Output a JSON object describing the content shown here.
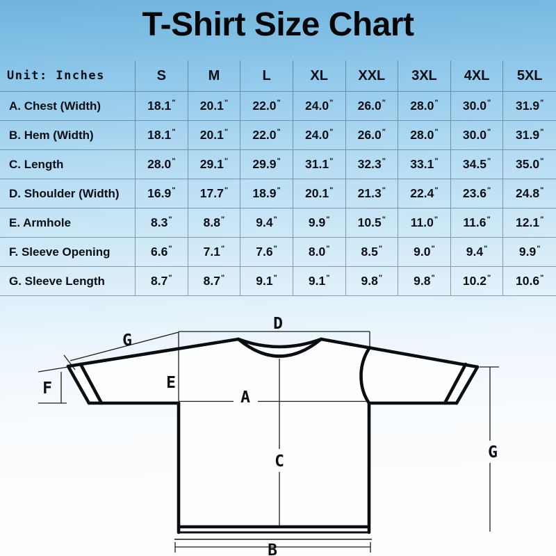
{
  "title": "T-Shirt Size Chart",
  "table": {
    "unit_label": "Unit: Inches",
    "inch_mark": "\"",
    "size_headers": [
      "S",
      "M",
      "L",
      "XL",
      "XXL",
      "3XL",
      "4XL",
      "5XL"
    ],
    "rows": [
      {
        "label": "A. Chest (Width)",
        "values": [
          "18.1",
          "20.1",
          "22.0",
          "24.0",
          "26.0",
          "28.0",
          "30.0",
          "31.9"
        ]
      },
      {
        "label": "B. Hem (Width)",
        "values": [
          "18.1",
          "20.1",
          "22.0",
          "24.0",
          "26.0",
          "28.0",
          "30.0",
          "31.9"
        ]
      },
      {
        "label": "C. Length",
        "values": [
          "28.0",
          "29.1",
          "29.9",
          "31.1",
          "32.3",
          "33.1",
          "34.5",
          "35.0"
        ]
      },
      {
        "label": "D. Shoulder (Width)",
        "values": [
          "16.9",
          "17.7",
          "18.9",
          "20.1",
          "21.3",
          "22.4",
          "23.6",
          "24.8"
        ]
      },
      {
        "label": "E. Armhole",
        "values": [
          "8.3",
          "8.8",
          "9.4",
          "9.9",
          "10.5",
          "11.0",
          "11.6",
          "12.1"
        ]
      },
      {
        "label": "F. Sleeve Opening",
        "values": [
          "6.6",
          "7.1",
          "7.6",
          "8.0",
          "8.5",
          "9.0",
          "9.4",
          "9.9"
        ]
      },
      {
        "label": "G. Sleeve Length",
        "values": [
          "8.7",
          "8.7",
          "9.1",
          "9.1",
          "9.8",
          "9.8",
          "10.2",
          "10.6"
        ]
      }
    ]
  },
  "diagram": {
    "labels": {
      "a": "A",
      "b": "B",
      "c": "C",
      "d": "D",
      "e": "E",
      "f": "F",
      "g_left": "G",
      "g_right": "G"
    }
  },
  "colors": {
    "background_top": "#6fb3dd",
    "background_bottom": "#fefefd",
    "grid_line": "#4b6478",
    "text": "#0a0e14",
    "diagram_line": "#0b0d10"
  }
}
